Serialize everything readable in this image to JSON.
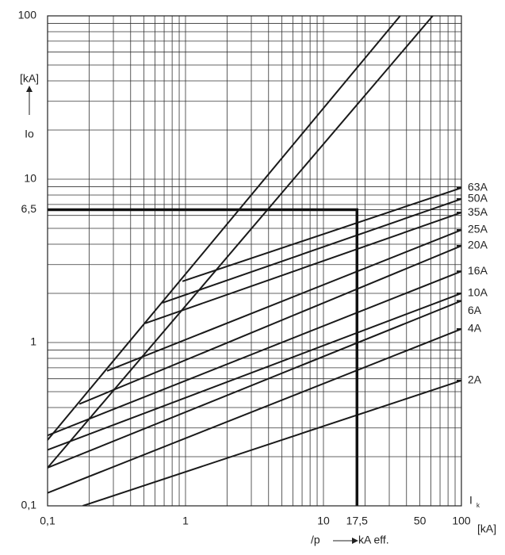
{
  "chart_data": {
    "type": "line",
    "log_x": true,
    "log_y": true,
    "grid": true,
    "color": "#1a1a1a",
    "y_unit": "[kA]",
    "ylabel": "Io",
    "xlabel": "I",
    "xlabel_subscript": "k",
    "x_unit": "[kA]",
    "bottom_note_left": "/p",
    "bottom_note_right": "kA eff.",
    "xlim": [
      0.1,
      100
    ],
    "ylim": [
      0.1,
      100
    ],
    "xticks": [
      {
        "value": 0.1,
        "label": "0,1"
      },
      1,
      10,
      {
        "value": 17.5,
        "label": "17,5"
      },
      50,
      100
    ],
    "yticks": [
      {
        "value": 0.1,
        "label": "0,1"
      },
      1,
      {
        "value": 6.5,
        "label": "6,5"
      },
      10,
      100
    ],
    "x_minor_ticks": [
      0.2,
      0.3,
      0.4,
      0.5,
      0.6,
      0.7,
      0.8,
      0.9,
      2,
      3,
      4,
      5,
      6,
      7,
      8,
      9,
      20,
      30,
      40,
      60,
      70,
      80,
      90
    ],
    "y_minor_ticks": [
      0.2,
      0.3,
      0.4,
      0.5,
      0.6,
      0.7,
      0.8,
      0.9,
      2,
      3,
      4,
      5,
      6,
      7,
      8,
      9,
      20,
      30,
      40,
      50,
      60,
      70,
      80,
      90
    ],
    "limit_lines": [
      {
        "x": [
          0.1,
          36
        ],
        "values": [
          0.253,
          100
        ]
      },
      {
        "x": [
          0.1,
          62
        ],
        "values": [
          0.171,
          100
        ]
      }
    ],
    "marker": {
      "x": 17.5,
      "y": 6.5
    },
    "series": [
      {
        "name": "63A",
        "x": [
          0.95,
          100
        ],
        "values": [
          2.37,
          8.85
        ]
      },
      {
        "name": "50A",
        "x": [
          0.68,
          100
        ],
        "values": [
          1.75,
          7.57
        ]
      },
      {
        "name": "35A",
        "x": [
          0.51,
          100
        ],
        "values": [
          1.31,
          6.25
        ]
      },
      {
        "name": "25A",
        "x": [
          0.27,
          100
        ],
        "values": [
          0.67,
          4.89
        ]
      },
      {
        "name": "20A",
        "x": [
          0.17,
          100
        ],
        "values": [
          0.42,
          3.91
        ]
      },
      {
        "name": "16A",
        "x": [
          0.1,
          100
        ],
        "values": [
          0.27,
          2.73
        ]
      },
      {
        "name": "10A",
        "x": [
          0.1,
          100
        ],
        "values": [
          0.22,
          2.0
        ]
      },
      {
        "name": "6A",
        "x": [
          0.1,
          100
        ],
        "values": [
          0.171,
          1.8
        ]
      },
      {
        "name": "4A",
        "x": [
          0.1,
          100
        ],
        "values": [
          0.12,
          1.21
        ]
      },
      {
        "name": "2A",
        "x": [
          0.18,
          100
        ],
        "values": [
          0.1,
          0.585
        ]
      }
    ]
  }
}
